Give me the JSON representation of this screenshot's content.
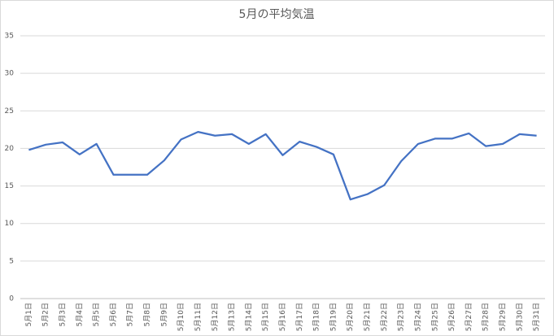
{
  "chart_data": {
    "type": "line",
    "title": "5月の平均気温",
    "categories": [
      "5月1日",
      "5月2日",
      "5月3日",
      "5月4日",
      "5月5日",
      "5月6日",
      "5月7日",
      "5月8日",
      "5月9日",
      "5月10日",
      "5月11日",
      "5月12日",
      "5月13日",
      "5月14日",
      "5月15日",
      "5月16日",
      "5月17日",
      "5月18日",
      "5月19日",
      "5月20日",
      "5月21日",
      "5月22日",
      "5月23日",
      "5月24日",
      "5月25日",
      "5月26日",
      "5月27日",
      "5月28日",
      "5月29日",
      "5月30日",
      "5月31日"
    ],
    "values": [
      19.8,
      20.5,
      20.8,
      19.2,
      20.6,
      16.5,
      16.5,
      16.5,
      18.4,
      21.2,
      22.2,
      21.7,
      21.9,
      20.6,
      21.9,
      19.1,
      20.9,
      20.2,
      19.2,
      13.2,
      13.9,
      15.1,
      18.3,
      20.6,
      21.3,
      21.3,
      22.0,
      20.3,
      20.6,
      21.9,
      21.7
    ],
    "color": "#4472c4",
    "ylim": [
      0,
      35
    ],
    "yticks": [
      0,
      5,
      10,
      15,
      20,
      25,
      30,
      35
    ],
    "grid": true
  }
}
